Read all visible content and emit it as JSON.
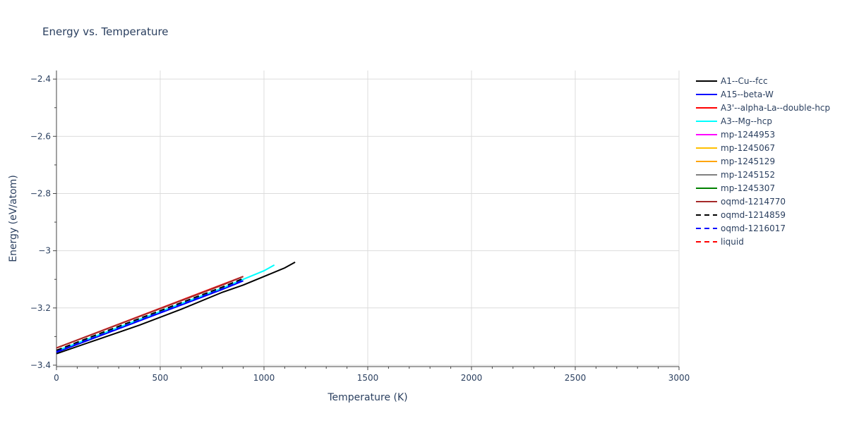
{
  "chart_data": {
    "type": "line",
    "title": "Energy vs. Temperature",
    "xlabel": "Temperature (K)",
    "ylabel": "Energy (eV/atom)",
    "xlim": [
      0,
      3000
    ],
    "ylim": [
      -3.405,
      -2.37
    ],
    "x_ticks": [
      0,
      500,
      1000,
      1500,
      2000,
      2500,
      3000
    ],
    "x_tick_labels": [
      "0",
      "500",
      "1000",
      "1500",
      "2000",
      "2500",
      "3000"
    ],
    "y_ticks": [
      -3.4,
      -3.2,
      -3.0,
      -2.8,
      -2.6,
      -2.4
    ],
    "y_tick_labels": [
      "−3.4",
      "−3.2",
      "−3",
      "−2.8",
      "−2.6",
      "−2.4"
    ],
    "grid": true,
    "legend_position": "right",
    "series": [
      {
        "name": "A1--Cu--fcc",
        "color": "#000000",
        "dash": "solid",
        "x": [
          0,
          200,
          400,
          600,
          800,
          900,
          1000,
          1100,
          1150
        ],
        "y": [
          -3.36,
          -3.31,
          -3.26,
          -3.205,
          -3.145,
          -3.12,
          -3.09,
          -3.06,
          -3.04
        ]
      },
      {
        "name": "A15--beta-W",
        "color": "#0000ff",
        "dash": "solid",
        "x": [
          0,
          200,
          400,
          600,
          800,
          900
        ],
        "y": [
          -3.355,
          -3.3,
          -3.245,
          -3.19,
          -3.135,
          -3.105
        ]
      },
      {
        "name": "A3'--alpha-La--double-hcp",
        "color": "#ff0000",
        "dash": "solid",
        "x": [
          0,
          900
        ],
        "y": [
          -3.34,
          -3.09
        ]
      },
      {
        "name": "A3--Mg--hcp",
        "color": "#00ffff",
        "dash": "solid",
        "x": [
          0,
          200,
          400,
          600,
          800,
          900,
          1000,
          1050
        ],
        "y": [
          -3.35,
          -3.295,
          -3.24,
          -3.185,
          -3.13,
          -3.1,
          -3.07,
          -3.05
        ]
      },
      {
        "name": "mp-1244953",
        "color": "#ff00ff",
        "dash": "solid",
        "x": [],
        "y": []
      },
      {
        "name": "mp-1245067",
        "color": "#ffc000",
        "dash": "solid",
        "x": [],
        "y": []
      },
      {
        "name": "mp-1245129",
        "color": "#ffa500",
        "dash": "solid",
        "x": [],
        "y": []
      },
      {
        "name": "mp-1245152",
        "color": "#808080",
        "dash": "solid",
        "x": [],
        "y": []
      },
      {
        "name": "mp-1245307",
        "color": "#008000",
        "dash": "solid",
        "x": [],
        "y": []
      },
      {
        "name": "oqmd-1214770",
        "color": "#a52a2a",
        "dash": "solid",
        "x": [
          0,
          200,
          400,
          600,
          800,
          900
        ],
        "y": [
          -3.34,
          -3.285,
          -3.23,
          -3.175,
          -3.12,
          -3.09
        ]
      },
      {
        "name": "oqmd-1214859",
        "color": "#000000",
        "dash": "dash",
        "x": [
          0,
          200,
          400,
          600,
          800,
          900
        ],
        "y": [
          -3.348,
          -3.292,
          -3.237,
          -3.182,
          -3.127,
          -3.097
        ]
      },
      {
        "name": "oqmd-1216017",
        "color": "#0000ff",
        "dash": "dash",
        "x": [
          0,
          200,
          400,
          600,
          800,
          900
        ],
        "y": [
          -3.353,
          -3.298,
          -3.243,
          -3.188,
          -3.133,
          -3.103
        ]
      },
      {
        "name": "liquid",
        "color": "#ff0000",
        "dash": "dash",
        "x": [],
        "y": []
      }
    ]
  }
}
